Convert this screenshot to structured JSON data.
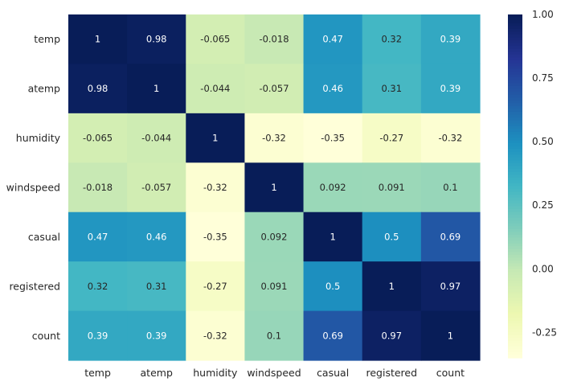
{
  "chart_data": {
    "type": "heatmap",
    "rows": [
      "temp",
      "atemp",
      "humidity",
      "windspeed",
      "casual",
      "registered",
      "count"
    ],
    "columns": [
      "temp",
      "atemp",
      "humidity",
      "windspeed",
      "casual",
      "registered",
      "count"
    ],
    "values": [
      [
        1,
        0.98,
        -0.065,
        -0.018,
        0.47,
        0.32,
        0.39
      ],
      [
        0.98,
        1,
        -0.044,
        -0.057,
        0.46,
        0.31,
        0.39
      ],
      [
        -0.065,
        -0.044,
        1,
        -0.32,
        -0.35,
        -0.27,
        -0.32
      ],
      [
        -0.018,
        -0.057,
        -0.32,
        1,
        0.092,
        0.091,
        0.1
      ],
      [
        0.47,
        0.46,
        -0.35,
        0.092,
        1,
        0.5,
        0.69
      ],
      [
        0.32,
        0.31,
        -0.27,
        0.091,
        0.5,
        1,
        0.97
      ],
      [
        0.39,
        0.39,
        -0.32,
        0.1,
        0.69,
        0.97,
        1
      ]
    ],
    "annotations": [
      [
        "1",
        "0.98",
        "-0.065",
        "-0.018",
        "0.47",
        "0.32",
        "0.39"
      ],
      [
        "0.98",
        "1",
        "-0.044",
        "-0.057",
        "0.46",
        "0.31",
        "0.39"
      ],
      [
        "-0.065",
        "-0.044",
        "1",
        "-0.32",
        "-0.35",
        "-0.27",
        "-0.32"
      ],
      [
        "-0.018",
        "-0.057",
        "-0.32",
        "1",
        "0.092",
        "0.091",
        "0.1"
      ],
      [
        "0.47",
        "0.46",
        "-0.35",
        "0.092",
        "1",
        "0.5",
        "0.69"
      ],
      [
        "0.32",
        "0.31",
        "-0.27",
        "0.091",
        "0.5",
        "1",
        "0.97"
      ],
      [
        "0.39",
        "0.39",
        "-0.32",
        "0.1",
        "0.69",
        "0.97",
        "1"
      ]
    ],
    "colormap": "YlGnBu",
    "vmin": -0.35,
    "vmax": 1.0,
    "colorbar": {
      "ticks": [
        1.0,
        0.75,
        0.5,
        0.25,
        0.0,
        -0.25
      ],
      "tick_labels": [
        "1.00",
        "0.75",
        "0.50",
        "0.25",
        "0.00",
        "-0.25"
      ]
    },
    "title": "",
    "xlabel": "",
    "ylabel": ""
  }
}
